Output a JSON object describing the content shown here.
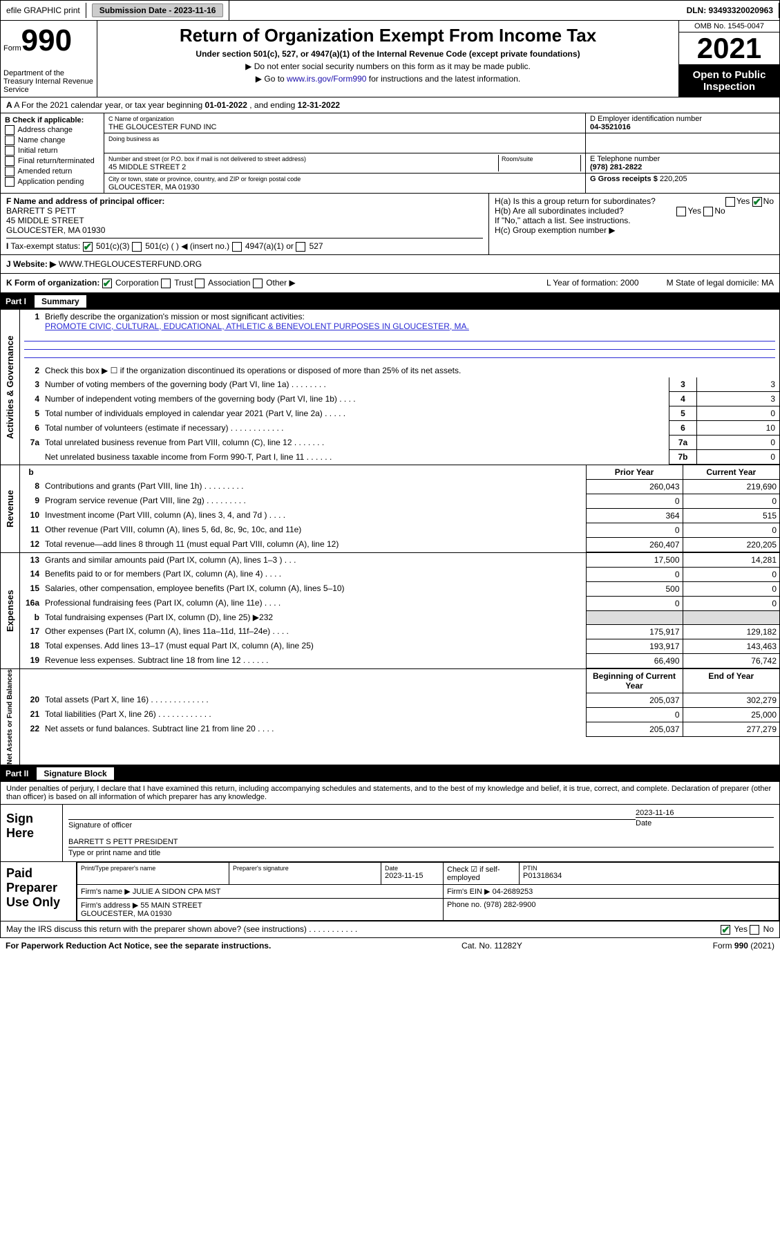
{
  "topbar": {
    "efile": "efile GRAPHIC print",
    "sub_label": "Submission Date - 2023-11-16",
    "dln": "DLN: 93493320020963"
  },
  "header": {
    "form_label": "Form",
    "form_num": "990",
    "dept": "Department of the Treasury Internal Revenue Service",
    "title": "Return of Organization Exempt From Income Tax",
    "sub1": "Under section 501(c), 527, or 4947(a)(1) of the Internal Revenue Code (except private foundations)",
    "sub2": "▶ Do not enter social security numbers on this form as it may be made public.",
    "sub3_pre": "▶ Go to ",
    "sub3_link": "www.irs.gov/Form990",
    "sub3_post": " for instructions and the latest information.",
    "omb": "OMB No. 1545-0047",
    "year": "2021",
    "oti": "Open to Public Inspection"
  },
  "rowA": {
    "pre": "A For the 2021 calendar year, or tax year beginning ",
    "begin": "01-01-2022",
    "mid": " , and ending ",
    "end": "12-31-2022"
  },
  "colB": {
    "label": "B Check if applicable:",
    "items": [
      "Address change",
      "Name change",
      "Initial return",
      "Final return/terminated",
      "Amended return",
      "Application pending"
    ]
  },
  "colC": {
    "name_lbl": "C Name of organization",
    "name": "THE GLOUCESTER FUND INC",
    "dba_lbl": "Doing business as",
    "addr_lbl": "Number and street (or P.O. box if mail is not delivered to street address)",
    "addr": "45 MIDDLE STREET 2",
    "room_lbl": "Room/suite",
    "city_lbl": "City or town, state or province, country, and ZIP or foreign postal code",
    "city": "GLOUCESTER, MA  01930"
  },
  "colD": {
    "lbl": "D Employer identification number",
    "val": "04-3521016"
  },
  "colE": {
    "lbl": "E Telephone number",
    "val": "(978) 281-2822"
  },
  "colG": {
    "lbl": "G Gross receipts $",
    "val": "220,205"
  },
  "rowF": {
    "lbl": "F Name and address of principal officer:",
    "name": "BARRETT S PETT",
    "addr1": "45 MIDDLE STREET",
    "addr2": "GLOUCESTER, MA  01930"
  },
  "rowH": {
    "ha": "H(a) Is this a group return for subordinates?",
    "hb": "H(b) Are all subordinates included?",
    "hb2": "If \"No,\" attach a list. See instructions.",
    "hc": "H(c) Group exemption number ▶"
  },
  "rowI": {
    "lbl": "Tax-exempt status:",
    "opts": [
      "501(c)(3)",
      "501(c) (  ) ◀ (insert no.)",
      "4947(a)(1) or",
      "527"
    ]
  },
  "rowJ": {
    "lbl": "Website: ▶",
    "val": "WWW.THEGLOUCESTERFUND.ORG"
  },
  "rowK": {
    "lbl": "K Form of organization:",
    "opts": [
      "Corporation",
      "Trust",
      "Association",
      "Other ▶"
    ],
    "l": "L Year of formation: 2000",
    "m": "M State of legal domicile: MA"
  },
  "part1": {
    "pt": "Part I",
    "ttl": "Summary"
  },
  "gov": {
    "q1": "Briefly describe the organization's mission or most significant activities:",
    "mission": "PROMOTE CIVIC, CULTURAL, EDUCATIONAL, ATHLETIC & BENEVOLENT PURPOSES IN GLOUCESTER, MA.",
    "q2": "Check this box ▶ ☐ if the organization discontinued its operations or disposed of more than 25% of its net assets.",
    "rows": [
      {
        "n": "3",
        "t": "Number of voting members of the governing body (Part VI, line 1a)  .   .   .   .   .   .   .   .",
        "b": "3",
        "v": "3"
      },
      {
        "n": "4",
        "t": "Number of independent voting members of the governing body (Part VI, line 1b)   .   .   .   .",
        "b": "4",
        "v": "3"
      },
      {
        "n": "5",
        "t": "Total number of individuals employed in calendar year 2021 (Part V, line 2a)   .   .   .   .   .",
        "b": "5",
        "v": "0"
      },
      {
        "n": "6",
        "t": "Total number of volunteers (estimate if necessary)   .   .   .   .   .   .   .   .   .   .   .   .",
        "b": "6",
        "v": "10"
      },
      {
        "n": "7a",
        "t": "Total unrelated business revenue from Part VIII, column (C), line 12   .   .   .   .   .   .   .",
        "b": "7a",
        "v": "0"
      },
      {
        "n": "",
        "t": "Net unrelated business taxable income from Form 990-T, Part I, line 11   .   .   .   .   .   .",
        "b": "7b",
        "v": "0"
      }
    ]
  },
  "rev": {
    "hdr_py": "Prior Year",
    "hdr_cy": "Current Year",
    "rows": [
      {
        "n": "8",
        "t": "Contributions and grants (Part VIII, line 1h)   .   .   .   .   .   .   .   .   .",
        "py": "260,043",
        "cy": "219,690"
      },
      {
        "n": "9",
        "t": "Program service revenue (Part VIII, line 2g)   .   .   .   .   .   .   .   .   .",
        "py": "0",
        "cy": "0"
      },
      {
        "n": "10",
        "t": "Investment income (Part VIII, column (A), lines 3, 4, and 7d )   .   .   .   .",
        "py": "364",
        "cy": "515"
      },
      {
        "n": "11",
        "t": "Other revenue (Part VIII, column (A), lines 5, 6d, 8c, 9c, 10c, and 11e)",
        "py": "0",
        "cy": "0"
      },
      {
        "n": "12",
        "t": "Total revenue—add lines 8 through 11 (must equal Part VIII, column (A), line 12)",
        "py": "260,407",
        "cy": "220,205"
      }
    ]
  },
  "exp": {
    "rows": [
      {
        "n": "13",
        "t": "Grants and similar amounts paid (Part IX, column (A), lines 1–3 )   .   .   .",
        "py": "17,500",
        "cy": "14,281"
      },
      {
        "n": "14",
        "t": "Benefits paid to or for members (Part IX, column (A), line 4)   .   .   .   .",
        "py": "0",
        "cy": "0"
      },
      {
        "n": "15",
        "t": "Salaries, other compensation, employee benefits (Part IX, column (A), lines 5–10)",
        "py": "500",
        "cy": "0"
      },
      {
        "n": "16a",
        "t": "Professional fundraising fees (Part IX, column (A), line 11e)   .   .   .   .",
        "py": "0",
        "cy": "0"
      },
      {
        "n": "b",
        "t": "Total fundraising expenses (Part IX, column (D), line 25) ▶232",
        "py": "",
        "cy": "",
        "gray": true
      },
      {
        "n": "17",
        "t": "Other expenses (Part IX, column (A), lines 11a–11d, 11f–24e)   .   .   .   .",
        "py": "175,917",
        "cy": "129,182"
      },
      {
        "n": "18",
        "t": "Total expenses. Add lines 13–17 (must equal Part IX, column (A), line 25)",
        "py": "193,917",
        "cy": "143,463"
      },
      {
        "n": "19",
        "t": "Revenue less expenses. Subtract line 18 from line 12   .   .   .   .   .   .",
        "py": "66,490",
        "cy": "76,742"
      }
    ]
  },
  "nab": {
    "hdr_py": "Beginning of Current Year",
    "hdr_cy": "End of Year",
    "rows": [
      {
        "n": "20",
        "t": "Total assets (Part X, line 16)   .   .   .   .   .   .   .   .   .   .   .   .   .",
        "py": "205,037",
        "cy": "302,279"
      },
      {
        "n": "21",
        "t": "Total liabilities (Part X, line 26)   .   .   .   .   .   .   .   .   .   .   .   .",
        "py": "0",
        "cy": "25,000"
      },
      {
        "n": "22",
        "t": "Net assets or fund balances. Subtract line 21 from line 20   .   .   .   .",
        "py": "205,037",
        "cy": "277,279"
      }
    ]
  },
  "part2": {
    "pt": "Part II",
    "ttl": "Signature Block"
  },
  "perjury": "Under penalties of perjury, I declare that I have examined this return, including accompanying schedules and statements, and to the best of my knowledge and belief, it is true, correct, and complete. Declaration of preparer (other than officer) is based on all information of which preparer has any knowledge.",
  "sign": {
    "here": "Sign Here",
    "date": "2023-11-16",
    "sig_lbl": "Signature of officer",
    "date_lbl": "Date",
    "name": "BARRETT S PETT PRESIDENT",
    "name_lbl": "Type or print name and title"
  },
  "prep": {
    "here": "Paid Preparer Use Only",
    "h": [
      "Print/Type preparer's name",
      "Preparer's signature",
      "Date",
      "",
      "PTIN"
    ],
    "date": "2023-11-15",
    "se_lbl": "Check ☑ if self-employed",
    "ptin": "P01318634",
    "firm_lbl": "Firm's name  ▶",
    "firm": "JULIE A SIDON CPA MST",
    "ein_lbl": "Firm's EIN ▶",
    "ein": "04-2689253",
    "addr_lbl": "Firm's address ▶",
    "addr1": "55 MAIN STREET",
    "addr2": "GLOUCESTER, MA  01930",
    "phone_lbl": "Phone no.",
    "phone": "(978) 282-9900",
    "q": "May the IRS discuss this return with the preparer shown above? (see instructions)   .   .   .   .   .   .   .   .   .   .   ."
  },
  "footer": {
    "left": "For Paperwork Reduction Act Notice, see the separate instructions.",
    "mid": "Cat. No. 11282Y",
    "right": "Form 990 (2021)"
  },
  "vlabels": {
    "gov": "Activities & Governance",
    "rev": "Revenue",
    "exp": "Expenses",
    "nab": "Net Assets or Fund Balances"
  }
}
